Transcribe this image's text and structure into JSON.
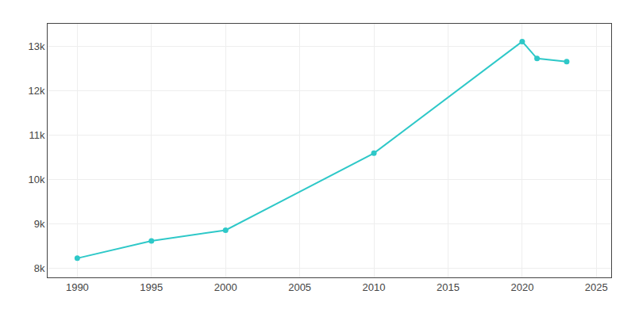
{
  "chart_data": {
    "type": "line",
    "x": [
      1990,
      1995,
      2000,
      2010,
      2020,
      2021,
      2023
    ],
    "values": [
      8230,
      8620,
      8860,
      10590,
      13100,
      12720,
      12650
    ],
    "color": "#2ec8c8",
    "marker": "circle",
    "xlim": [
      1988,
      2026
    ],
    "xticks": [
      1990,
      1995,
      2000,
      2005,
      2010,
      2015,
      2020,
      2025
    ],
    "ylim": [
      7800,
      13500
    ],
    "yticks": [
      {
        "value": 8000,
        "label": "8k"
      },
      {
        "value": 9000,
        "label": "9k"
      },
      {
        "value": 10000,
        "label": "10k"
      },
      {
        "value": 11000,
        "label": "11k"
      },
      {
        "value": 12000,
        "label": "12k"
      },
      {
        "value": 13000,
        "label": "13k"
      }
    ],
    "grid": true
  }
}
